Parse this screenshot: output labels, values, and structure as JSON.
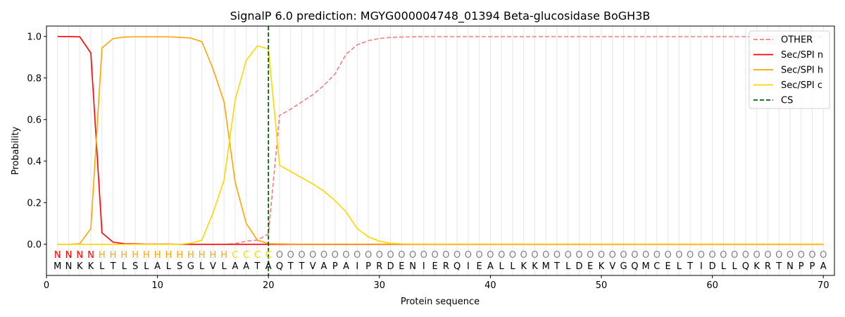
{
  "chart_data": {
    "type": "line",
    "title": "SignalP 6.0 prediction: MGYG000004748_01394 Beta-glucosidase BoGH3B",
    "xlabel": "Protein sequence",
    "ylabel": "Probability",
    "xlim": [
      0,
      71
    ],
    "ylim": [
      -0.15,
      1.05
    ],
    "xticks": [
      0,
      10,
      20,
      30,
      40,
      50,
      60,
      70
    ],
    "yticks": [
      0.0,
      0.2,
      0.4,
      0.6,
      0.8,
      1.0
    ],
    "xtick_labels": [
      "0",
      "10",
      "20",
      "30",
      "40",
      "50",
      "60",
      "70"
    ],
    "ytick_labels": [
      "0.0",
      "0.2",
      "0.4",
      "0.6",
      "0.8",
      "1.0"
    ],
    "grid": "vertical lines at each residue",
    "legend_position": "top-right",
    "sequence": [
      "M",
      "N",
      "K",
      "K",
      "L",
      "T",
      "L",
      "S",
      "L",
      "A",
      "L",
      "S",
      "G",
      "L",
      "V",
      "L",
      "A",
      "A",
      "T",
      "A",
      "Q",
      "T",
      "T",
      "V",
      "A",
      "P",
      "A",
      "I",
      "P",
      "R",
      "D",
      "E",
      "N",
      "I",
      "E",
      "R",
      "Q",
      "I",
      "E",
      "A",
      "L",
      "L",
      "K",
      "K",
      "M",
      "T",
      "L",
      "D",
      "E",
      "K",
      "V",
      "G",
      "Q",
      "M",
      "C",
      "E",
      "L",
      "T",
      "I",
      "D",
      "L",
      "L",
      "Q",
      "K",
      "R",
      "T",
      "N",
      "P",
      "P",
      "A"
    ],
    "labels": [
      "N",
      "N",
      "N",
      "N",
      "H",
      "H",
      "H",
      "H",
      "H",
      "H",
      "H",
      "H",
      "H",
      "H",
      "H",
      "H",
      "C",
      "C",
      "C",
      "C",
      "O",
      "O",
      "O",
      "O",
      "O",
      "O",
      "O",
      "O",
      "O",
      "O",
      "O",
      "O",
      "O",
      "O",
      "O",
      "O",
      "O",
      "O",
      "O",
      "O",
      "O",
      "O",
      "O",
      "O",
      "O",
      "O",
      "O",
      "O",
      "O",
      "O",
      "O",
      "O",
      "O",
      "O",
      "O",
      "O",
      "O",
      "O",
      "O",
      "O",
      "O",
      "O",
      "O",
      "O",
      "O",
      "O",
      "O",
      "O",
      "O",
      "O"
    ],
    "label_colors": {
      "N": "#ff0000",
      "H": "#ffa500",
      "C": "#ffd700",
      "O": "#808080"
    },
    "x": [
      1,
      2,
      3,
      4,
      5,
      6,
      7,
      8,
      9,
      10,
      11,
      12,
      13,
      14,
      15,
      16,
      17,
      18,
      19,
      20,
      21,
      22,
      23,
      24,
      25,
      26,
      27,
      28,
      29,
      30,
      31,
      32,
      33,
      34,
      35,
      36,
      37,
      38,
      39,
      40,
      41,
      42,
      43,
      44,
      45,
      46,
      47,
      48,
      49,
      50,
      51,
      52,
      53,
      54,
      55,
      56,
      57,
      58,
      59,
      60,
      61,
      62,
      63,
      64,
      65,
      66,
      67,
      68,
      69,
      70
    ],
    "series": [
      {
        "name": "OTHER",
        "color": "#f08080",
        "dash": true,
        "values": [
          0,
          0,
          0,
          0,
          0,
          0,
          0,
          0,
          0,
          0,
          0,
          0,
          0,
          0,
          0,
          0,
          0.003,
          0.015,
          0.02,
          0.05,
          0.62,
          0.65,
          0.685,
          0.72,
          0.765,
          0.82,
          0.915,
          0.96,
          0.98,
          0.99,
          0.995,
          0.997,
          0.998,
          0.999,
          0.999,
          0.999,
          0.999,
          0.999,
          0.999,
          0.999,
          0.999,
          0.999,
          0.999,
          0.999,
          0.999,
          0.999,
          0.999,
          0.999,
          0.999,
          0.999,
          0.999,
          0.999,
          0.999,
          0.999,
          0.999,
          0.999,
          0.999,
          0.999,
          0.999,
          0.999,
          0.999,
          0.999,
          0.999,
          0.999,
          0.999,
          0.999,
          0.999,
          0.999,
          0.999,
          0.999
        ]
      },
      {
        "name": "Sec/SPI n",
        "color": "#ff0000",
        "dash": false,
        "values": [
          1.0,
          1.0,
          0.998,
          0.92,
          0.055,
          0.01,
          0.003,
          0.002,
          0.001,
          0.001,
          0.001,
          0,
          0,
          0,
          0,
          0,
          0,
          0,
          0,
          0,
          0,
          0,
          0,
          0,
          0,
          0,
          0,
          0,
          0,
          0,
          0,
          0,
          0,
          0,
          0,
          0,
          0,
          0,
          0,
          0,
          0,
          0,
          0,
          0,
          0,
          0,
          0,
          0,
          0,
          0,
          0,
          0,
          0,
          0,
          0,
          0,
          0,
          0,
          0,
          0,
          0,
          0,
          0,
          0,
          0,
          0,
          0,
          0,
          0,
          0
        ]
      },
      {
        "name": "Sec/SPI h",
        "color": "#ffa500",
        "dash": false,
        "values": [
          0,
          0,
          0.003,
          0.075,
          0.945,
          0.99,
          0.997,
          0.998,
          0.998,
          0.998,
          0.998,
          0.996,
          0.992,
          0.975,
          0.845,
          0.685,
          0.3,
          0.1,
          0.02,
          0.003,
          0.002,
          0.001,
          0.001,
          0.001,
          0.001,
          0.001,
          0.001,
          0.001,
          0.001,
          0.001,
          0.001,
          0.001,
          0.001,
          0.001,
          0.001,
          0.001,
          0.001,
          0.001,
          0.001,
          0.001,
          0.001,
          0.001,
          0.001,
          0.001,
          0.001,
          0.001,
          0.001,
          0.001,
          0.001,
          0.001,
          0.001,
          0.001,
          0.001,
          0.001,
          0.001,
          0.001,
          0.001,
          0.001,
          0.001,
          0.001,
          0.001,
          0.001,
          0.001,
          0.001,
          0.001,
          0.001,
          0.001,
          0.001,
          0.001,
          0.001
        ]
      },
      {
        "name": "Sec/SPI c",
        "color": "#ffd700",
        "dash": false,
        "values": [
          0,
          0,
          0,
          0,
          0,
          0,
          0,
          0,
          0,
          0,
          0,
          0,
          0.005,
          0.02,
          0.15,
          0.31,
          0.695,
          0.885,
          0.955,
          0.94,
          0.38,
          0.35,
          0.32,
          0.29,
          0.255,
          0.21,
          0.155,
          0.075,
          0.035,
          0.015,
          0.005,
          0.002,
          0.001,
          0.001,
          0.001,
          0.001,
          0.001,
          0.001,
          0.001,
          0.001,
          0.001,
          0.001,
          0.001,
          0.001,
          0.001,
          0.001,
          0.001,
          0.001,
          0.001,
          0.001,
          0.001,
          0.001,
          0.001,
          0.001,
          0.001,
          0.001,
          0.001,
          0.001,
          0.001,
          0.001,
          0.001,
          0.001,
          0.001,
          0.001,
          0.001,
          0.001,
          0.001,
          0.001,
          0.001,
          0.001
        ]
      }
    ],
    "cs": {
      "name": "CS",
      "x": 20,
      "color": "#006400"
    }
  }
}
